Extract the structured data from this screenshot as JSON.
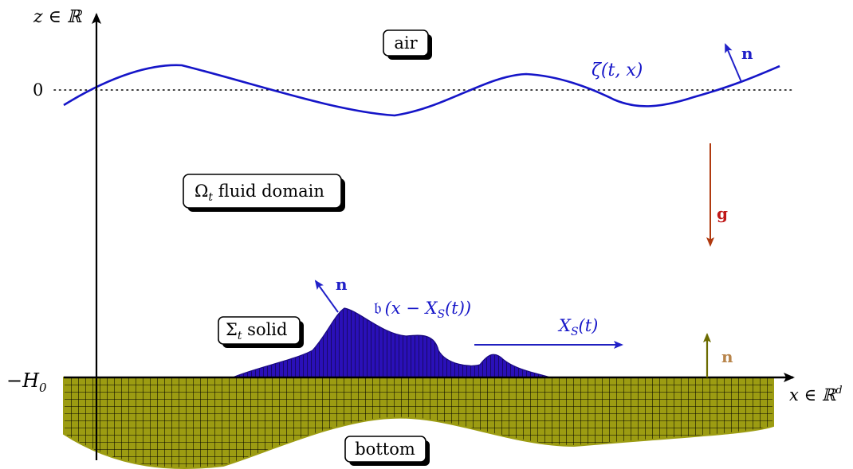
{
  "axes": {
    "z_label": "z ∈ ℝ",
    "x_label": "x ∈ ℝ",
    "x_label_sup": "d",
    "zero_tick": "0",
    "depth_tick": "−H",
    "depth_tick_sub": "0"
  },
  "boxes": {
    "air": "air",
    "fluid_symbol": "Ω",
    "fluid_sub": "t",
    "fluid_text": " fluid domain",
    "solid_symbol": "Σ",
    "solid_sub": "t",
    "solid_text": " solid",
    "bottom": "bottom"
  },
  "labels": {
    "surface": "ζ(t, x)",
    "normal": "n",
    "gravity": "g",
    "solid_profile_prefix": "𝔟",
    "solid_profile_args": "(x − X",
    "solid_profile_sub": "S",
    "solid_profile_end": "(t))",
    "solid_motion": "X",
    "solid_motion_sub": "S",
    "solid_motion_end": "(t)"
  },
  "colors": {
    "surface": "#1515c8",
    "normal_blue": "#2020c8",
    "solid_fill": "#2a10b8",
    "gravity": "#b03a10",
    "gravity_label": "#c01818",
    "bottom_fill": "#9a9a10",
    "bottom_normal": "#6b6b00",
    "bottom_normal_label": "#b8844a",
    "motion_arrow": "#2020c0"
  }
}
